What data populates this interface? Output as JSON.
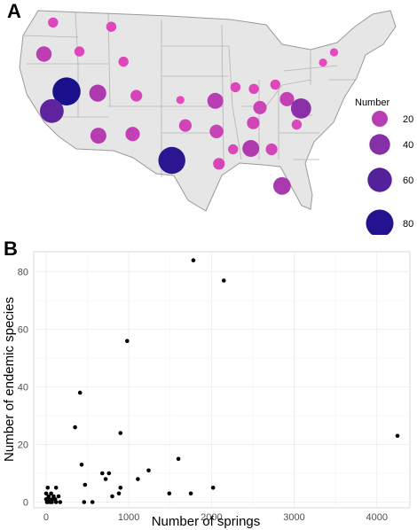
{
  "panels": {
    "a_label": "A",
    "b_label": "B"
  },
  "map": {
    "legend": {
      "title": "Number",
      "sizes": [
        20,
        40,
        60,
        80
      ]
    },
    "points": [
      {
        "lon": -119.1,
        "lat": 47.6,
        "n": 5
      },
      {
        "lon": -120.6,
        "lat": 43.9,
        "n": 18
      },
      {
        "lon": -114.8,
        "lat": 44.2,
        "n": 5
      },
      {
        "lon": -109.6,
        "lat": 47.1,
        "n": 5
      },
      {
        "lon": -107.6,
        "lat": 43.0,
        "n": 5
      },
      {
        "lon": -116.9,
        "lat": 39.5,
        "n": 84
      },
      {
        "lon": -119.3,
        "lat": 37.2,
        "n": 56
      },
      {
        "lon": -111.8,
        "lat": 39.3,
        "n": 24
      },
      {
        "lon": -105.5,
        "lat": 39.0,
        "n": 8
      },
      {
        "lon": -111.7,
        "lat": 34.3,
        "n": 20
      },
      {
        "lon": -106.1,
        "lat": 34.5,
        "n": 15
      },
      {
        "lon": -99.7,
        "lat": 31.4,
        "n": 77
      },
      {
        "lon": -98.3,
        "lat": 38.5,
        "n": 2
      },
      {
        "lon": -97.5,
        "lat": 35.5,
        "n": 10
      },
      {
        "lon": -92.6,
        "lat": 38.4,
        "n": 20
      },
      {
        "lon": -92.4,
        "lat": 34.8,
        "n": 13
      },
      {
        "lon": -92.0,
        "lat": 31.0,
        "n": 8
      },
      {
        "lon": -89.3,
        "lat": 40.0,
        "n": 5
      },
      {
        "lon": -86.3,
        "lat": 39.8,
        "n": 5
      },
      {
        "lon": -82.8,
        "lat": 40.3,
        "n": 5
      },
      {
        "lon": -85.3,
        "lat": 37.6,
        "n": 12
      },
      {
        "lon": -86.4,
        "lat": 35.8,
        "n": 10
      },
      {
        "lon": -89.7,
        "lat": 32.7,
        "n": 5
      },
      {
        "lon": -86.8,
        "lat": 32.8,
        "n": 23
      },
      {
        "lon": -83.4,
        "lat": 32.7,
        "n": 8
      },
      {
        "lon": -80.9,
        "lat": 38.6,
        "n": 15
      },
      {
        "lon": -78.6,
        "lat": 37.5,
        "n": 38
      },
      {
        "lon": -79.3,
        "lat": 35.6,
        "n": 5
      },
      {
        "lon": -81.7,
        "lat": 28.4,
        "n": 26
      },
      {
        "lon": -75.0,
        "lat": 42.9,
        "n": 2
      },
      {
        "lon": -73.2,
        "lat": 44.1,
        "n": 2
      }
    ]
  },
  "chart_data": {
    "type": "scatter",
    "xlabel": "Number of springs",
    "ylabel": "Number of endemic species",
    "xlim": [
      -150,
      4400
    ],
    "ylim": [
      -2,
      87
    ],
    "xticks": [
      0,
      1000,
      2000,
      3000,
      4000
    ],
    "yticks": [
      0,
      20,
      40,
      60,
      80
    ],
    "grid": true,
    "points": [
      [
        1780,
        84
      ],
      [
        2150,
        77
      ],
      [
        980,
        56
      ],
      [
        410,
        38
      ],
      [
        350,
        26
      ],
      [
        900,
        24
      ],
      [
        4250,
        23
      ],
      [
        430,
        13
      ],
      [
        1600,
        15
      ],
      [
        1240,
        11
      ],
      [
        680,
        10
      ],
      [
        760,
        10
      ],
      [
        1110,
        8
      ],
      [
        720,
        8
      ],
      [
        470,
        6
      ],
      [
        900,
        5
      ],
      [
        880,
        3
      ],
      [
        2020,
        5
      ],
      [
        1750,
        3
      ],
      [
        1490,
        3
      ],
      [
        120,
        5
      ],
      [
        800,
        2
      ],
      [
        460,
        0
      ],
      [
        560,
        0
      ],
      [
        20,
        5
      ],
      [
        0,
        3
      ],
      [
        30,
        2
      ],
      [
        60,
        3
      ],
      [
        90,
        2
      ],
      [
        120,
        0
      ],
      [
        170,
        0
      ],
      [
        10,
        0
      ],
      [
        40,
        1
      ],
      [
        70,
        0
      ],
      [
        110,
        1
      ],
      [
        150,
        2
      ],
      [
        50,
        0
      ],
      [
        0,
        1
      ],
      [
        80,
        1
      ],
      [
        20,
        0
      ]
    ]
  }
}
